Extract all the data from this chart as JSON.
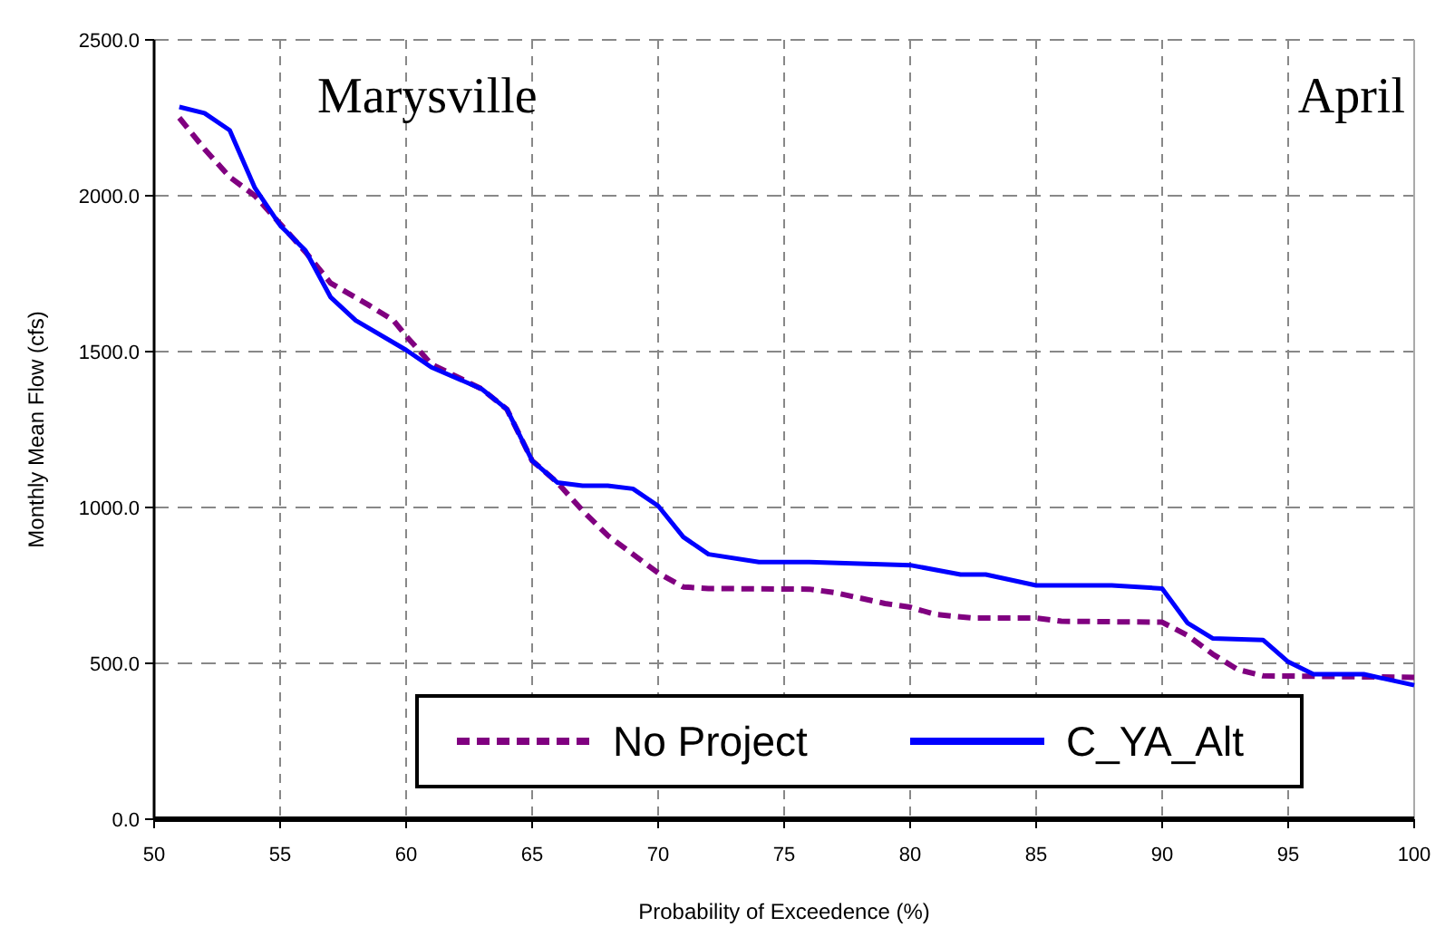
{
  "chart_data": {
    "type": "line",
    "xlabel": "Probability of Exceedence (%)",
    "ylabel": "Monthly Mean Flow (cfs)",
    "annotations": [
      "Marysville",
      "April"
    ],
    "xlim": [
      50,
      100
    ],
    "xticks": [
      50,
      55,
      60,
      65,
      70,
      75,
      80,
      85,
      90,
      95,
      100
    ],
    "ylim": [
      0,
      2500
    ],
    "yticks": [
      {
        "value": 0,
        "label": "0.0"
      },
      {
        "value": 500,
        "label": "500.0"
      },
      {
        "value": 1000,
        "label": "1000.0"
      },
      {
        "value": 1500,
        "label": "1500.0"
      },
      {
        "value": 2000,
        "label": "2000.0"
      },
      {
        "value": 2500,
        "label": "2500.0"
      }
    ],
    "grid": true,
    "legend": "bottom",
    "marker": "none",
    "series": [
      {
        "name": "No Project",
        "color": "#800080",
        "line_style": "dashed",
        "x": [
          51,
          52,
          53,
          54,
          55,
          56,
          57,
          58.5,
          59.5,
          60,
          61,
          63,
          64,
          65,
          66,
          67,
          68,
          69,
          70,
          71,
          72,
          76,
          77,
          79,
          80,
          81,
          82.5,
          85,
          86,
          90,
          91,
          92,
          93,
          94,
          100
        ],
        "values": [
          2250,
          2150,
          2060,
          2000,
          1910,
          1820,
          1720,
          1650,
          1600,
          1550,
          1460,
          1380,
          1315,
          1150,
          1080,
          990,
          910,
          850,
          790,
          745,
          740,
          738,
          727,
          692,
          680,
          657,
          645,
          645,
          635,
          632,
          590,
          530,
          480,
          460,
          455
        ]
      },
      {
        "name": "C_YA_Alt",
        "color": "#0000ff",
        "line_style": "solid",
        "x": [
          51,
          52,
          53,
          54,
          55,
          56,
          57,
          58,
          60,
          61,
          63,
          64,
          65,
          66,
          67,
          68,
          69,
          70,
          71,
          72,
          74,
          76,
          78,
          80,
          82,
          83,
          85,
          88,
          90,
          91,
          92,
          94,
          95,
          96,
          98,
          100
        ],
        "values": [
          2285,
          2265,
          2210,
          2025,
          1905,
          1825,
          1675,
          1600,
          1505,
          1450,
          1380,
          1315,
          1150,
          1080,
          1070,
          1070,
          1060,
          1005,
          905,
          850,
          825,
          825,
          820,
          815,
          785,
          785,
          750,
          750,
          740,
          630,
          580,
          575,
          505,
          465,
          465,
          430
        ]
      }
    ]
  }
}
